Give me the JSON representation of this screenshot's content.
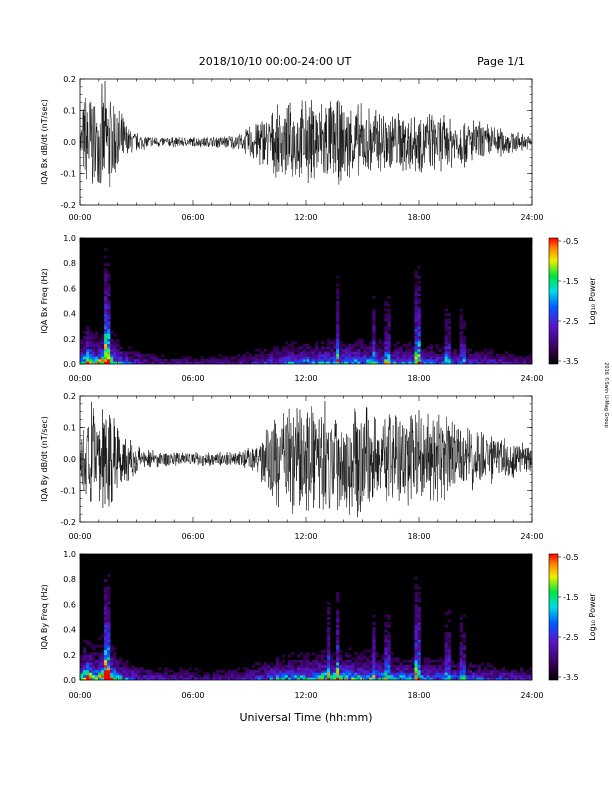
{
  "header": {
    "title": "2018/10/10   00:00-24:00 UT",
    "page": "Page 1/1"
  },
  "xlabel": "Universal Time (hh:mm)",
  "side_note": "2016 ©Swin U-Mag Group",
  "chart_data": [
    {
      "type": "line",
      "ylabel": "IQA Bx dB/dt (nT/sec)",
      "xlim": [
        0,
        24
      ],
      "ylim": [
        -0.2,
        0.2
      ],
      "x_ticks": [
        "00:00",
        "06:00",
        "12:00",
        "18:00",
        "24:00"
      ],
      "y_ticks": [
        "0.2",
        "0.1",
        "0.0",
        "-0.1",
        "-0.2"
      ],
      "envelope": {
        "hours": [
          0,
          0.3,
          0.6,
          0.9,
          1.2,
          1.5,
          1.9,
          2.3,
          2.6,
          3.0,
          3.5,
          4.0,
          5.0,
          6.0,
          7.0,
          8.0,
          8.6,
          9.0,
          9.5,
          10.0,
          10.5,
          11.0,
          11.5,
          12.0,
          12.5,
          13.0,
          13.5,
          14.0,
          15.0,
          16.0,
          17.0,
          18.0,
          19.0,
          20.0,
          21.0,
          22.0,
          23.0,
          24.0
        ],
        "amplitude": [
          0.04,
          0.2,
          0.2,
          0.12,
          0.2,
          0.2,
          0.14,
          0.09,
          0.05,
          0.035,
          0.025,
          0.02,
          0.018,
          0.018,
          0.02,
          0.025,
          0.03,
          0.06,
          0.09,
          0.1,
          0.12,
          0.13,
          0.14,
          0.15,
          0.15,
          0.16,
          0.15,
          0.14,
          0.13,
          0.12,
          0.11,
          0.11,
          0.1,
          0.09,
          0.08,
          0.06,
          0.04,
          0.02
        ]
      }
    },
    {
      "type": "heatmap",
      "ylabel": "IQA Bx Freq (Hz)",
      "xlim": [
        0,
        24
      ],
      "ylim": [
        0,
        1.0
      ],
      "x_ticks": [
        "00:00",
        "06:00",
        "12:00",
        "18:00",
        "24:00"
      ],
      "y_ticks": [
        "1.0",
        "0.8",
        "0.6",
        "0.4",
        "0.2",
        "0.0"
      ],
      "colorbar": {
        "label": "Log₁₀ Power",
        "range": [
          -3.5,
          -0.5
        ],
        "ticks": [
          "-0.5",
          "-1.5",
          "-2.5",
          "-3.5"
        ]
      },
      "activity": {
        "hours": [
          0,
          0.4,
          0.8,
          1.2,
          1.5,
          1.8,
          2.5,
          3.5,
          5,
          7,
          8.5,
          9.5,
          10.5,
          11.5,
          12.5,
          13.5,
          14.5,
          16,
          17.5,
          18.5,
          20,
          21.5,
          23,
          24
        ],
        "level": [
          0.5,
          0.9,
          0.6,
          0.8,
          0.9,
          0.6,
          0.35,
          0.25,
          0.2,
          0.2,
          0.22,
          0.28,
          0.38,
          0.45,
          0.5,
          0.55,
          0.5,
          0.48,
          0.42,
          0.4,
          0.35,
          0.3,
          0.25,
          0.2
        ]
      },
      "bursts": [
        {
          "hour": 1.35,
          "strength": 1.0
        },
        {
          "hour": 1.55,
          "strength": 0.8
        },
        {
          "hour": 13.7,
          "strength": 0.6
        },
        {
          "hour": 15.6,
          "strength": 0.45
        },
        {
          "hour": 16.3,
          "strength": 0.4
        },
        {
          "hour": 17.9,
          "strength": 0.85
        },
        {
          "hour": 19.5,
          "strength": 0.4
        },
        {
          "hour": 20.3,
          "strength": 0.35
        }
      ]
    },
    {
      "type": "line",
      "ylabel": "IQA By dB/dt (nT/sec)",
      "xlim": [
        0,
        24
      ],
      "ylim": [
        -0.2,
        0.2
      ],
      "x_ticks": [
        "00:00",
        "06:00",
        "12:00",
        "18:00",
        "24:00"
      ],
      "y_ticks": [
        "0.2",
        "0.1",
        "0.0",
        "-0.1",
        "-0.2"
      ],
      "envelope": {
        "hours": [
          0,
          0.3,
          0.6,
          0.9,
          1.2,
          1.5,
          1.9,
          2.3,
          2.6,
          3.0,
          3.5,
          4.0,
          5.0,
          6.0,
          7.0,
          8.0,
          8.6,
          9.0,
          9.5,
          10.0,
          10.5,
          11.0,
          11.5,
          12.0,
          12.5,
          13.0,
          13.5,
          14.0,
          15.0,
          16.0,
          17.0,
          18.0,
          19.0,
          20.0,
          21.0,
          22.0,
          23.0,
          24.0
        ],
        "amplitude": [
          0.05,
          0.2,
          0.2,
          0.14,
          0.2,
          0.2,
          0.16,
          0.12,
          0.08,
          0.06,
          0.04,
          0.03,
          0.025,
          0.025,
          0.025,
          0.025,
          0.03,
          0.04,
          0.06,
          0.12,
          0.17,
          0.19,
          0.2,
          0.2,
          0.2,
          0.2,
          0.2,
          0.2,
          0.19,
          0.18,
          0.17,
          0.17,
          0.15,
          0.13,
          0.11,
          0.09,
          0.07,
          0.04
        ]
      }
    },
    {
      "type": "heatmap",
      "ylabel": "IQA By Freq (Hz)",
      "xlim": [
        0,
        24
      ],
      "ylim": [
        0,
        1.0
      ],
      "x_ticks": [
        "00:00",
        "06:00",
        "12:00",
        "18:00",
        "24:00"
      ],
      "y_ticks": [
        "1.0",
        "0.8",
        "0.6",
        "0.4",
        "0.2",
        "0.0"
      ],
      "colorbar": {
        "label": "Log₁₀ Power",
        "range": [
          -3.5,
          -0.5
        ],
        "ticks": [
          "-0.5",
          "-1.5",
          "-2.5",
          "-3.5"
        ]
      },
      "activity": {
        "hours": [
          0,
          0.4,
          0.8,
          1.2,
          1.5,
          1.8,
          2.5,
          3.5,
          5,
          7,
          8.5,
          9.5,
          10.5,
          11.5,
          12.5,
          13.5,
          14.5,
          16,
          17.5,
          18.5,
          20,
          21.5,
          23,
          24
        ],
        "level": [
          0.55,
          0.95,
          0.65,
          0.85,
          0.95,
          0.65,
          0.4,
          0.3,
          0.25,
          0.22,
          0.25,
          0.35,
          0.5,
          0.55,
          0.6,
          0.65,
          0.6,
          0.55,
          0.5,
          0.45,
          0.4,
          0.35,
          0.3,
          0.25
        ]
      },
      "bursts": [
        {
          "hour": 1.35,
          "strength": 1.0
        },
        {
          "hour": 1.55,
          "strength": 0.8
        },
        {
          "hour": 13.2,
          "strength": 0.55
        },
        {
          "hour": 13.7,
          "strength": 0.7
        },
        {
          "hour": 15.6,
          "strength": 0.5
        },
        {
          "hour": 16.3,
          "strength": 0.45
        },
        {
          "hour": 17.9,
          "strength": 0.85
        },
        {
          "hour": 19.5,
          "strength": 0.45
        },
        {
          "hour": 20.3,
          "strength": 0.4
        }
      ]
    }
  ]
}
